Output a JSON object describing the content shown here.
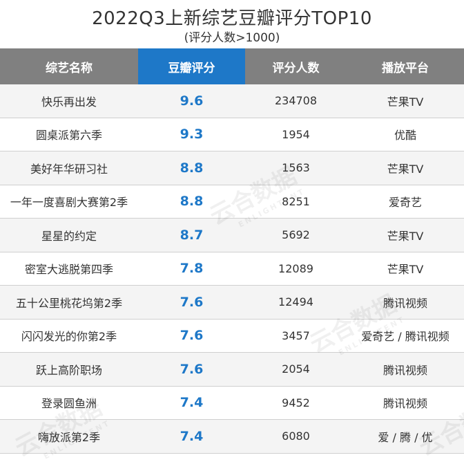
{
  "chart_data": {
    "type": "table",
    "title": "2022Q3上新综艺豆瓣评分TOP10",
    "subtitle": "(评分人数>1000)",
    "columns": [
      "综艺名称",
      "豆瓣评分",
      "评分人数",
      "播放平台"
    ],
    "highlight_column": 1,
    "rows": [
      {
        "name": "快乐再出发",
        "score": "9.6",
        "count": "234708",
        "platform": "芒果TV"
      },
      {
        "name": "圆桌派第六季",
        "score": "9.3",
        "count": "1954",
        "platform": "优酷"
      },
      {
        "name": "美好年华研习社",
        "score": "8.8",
        "count": "1563",
        "platform": "芒果TV"
      },
      {
        "name": "一年一度喜剧大赛第2季",
        "score": "8.8",
        "count": "8251",
        "platform": "爱奇艺"
      },
      {
        "name": "星星的约定",
        "score": "8.7",
        "count": "5692",
        "platform": "芒果TV"
      },
      {
        "name": "密室大逃脱第四季",
        "score": "7.8",
        "count": "12089",
        "platform": "芒果TV"
      },
      {
        "name": "五十公里桃花坞第2季",
        "score": "7.6",
        "count": "12494",
        "platform": "腾讯视频"
      },
      {
        "name": "闪闪发光的你第2季",
        "score": "7.6",
        "count": "3457",
        "platform": "爱奇艺 / 腾讯视频"
      },
      {
        "name": "跃上高阶职场",
        "score": "7.6",
        "count": "2054",
        "platform": "腾讯视频"
      },
      {
        "name": "登录圆鱼洲",
        "score": "7.4",
        "count": "9452",
        "platform": "腾讯视频"
      },
      {
        "name": "嗨放派第2季",
        "score": "7.4",
        "count": "6080",
        "platform": "爱 / 腾 / 优"
      }
    ],
    "colors": {
      "header_bg": "#808080",
      "highlight_header_bg": "#1e78c8",
      "score_text": "#1e78c8",
      "row_alt_bg": "#f4f4f4"
    }
  },
  "watermark": {
    "cn": "云合数据",
    "en": "ENLIGHTENT"
  }
}
